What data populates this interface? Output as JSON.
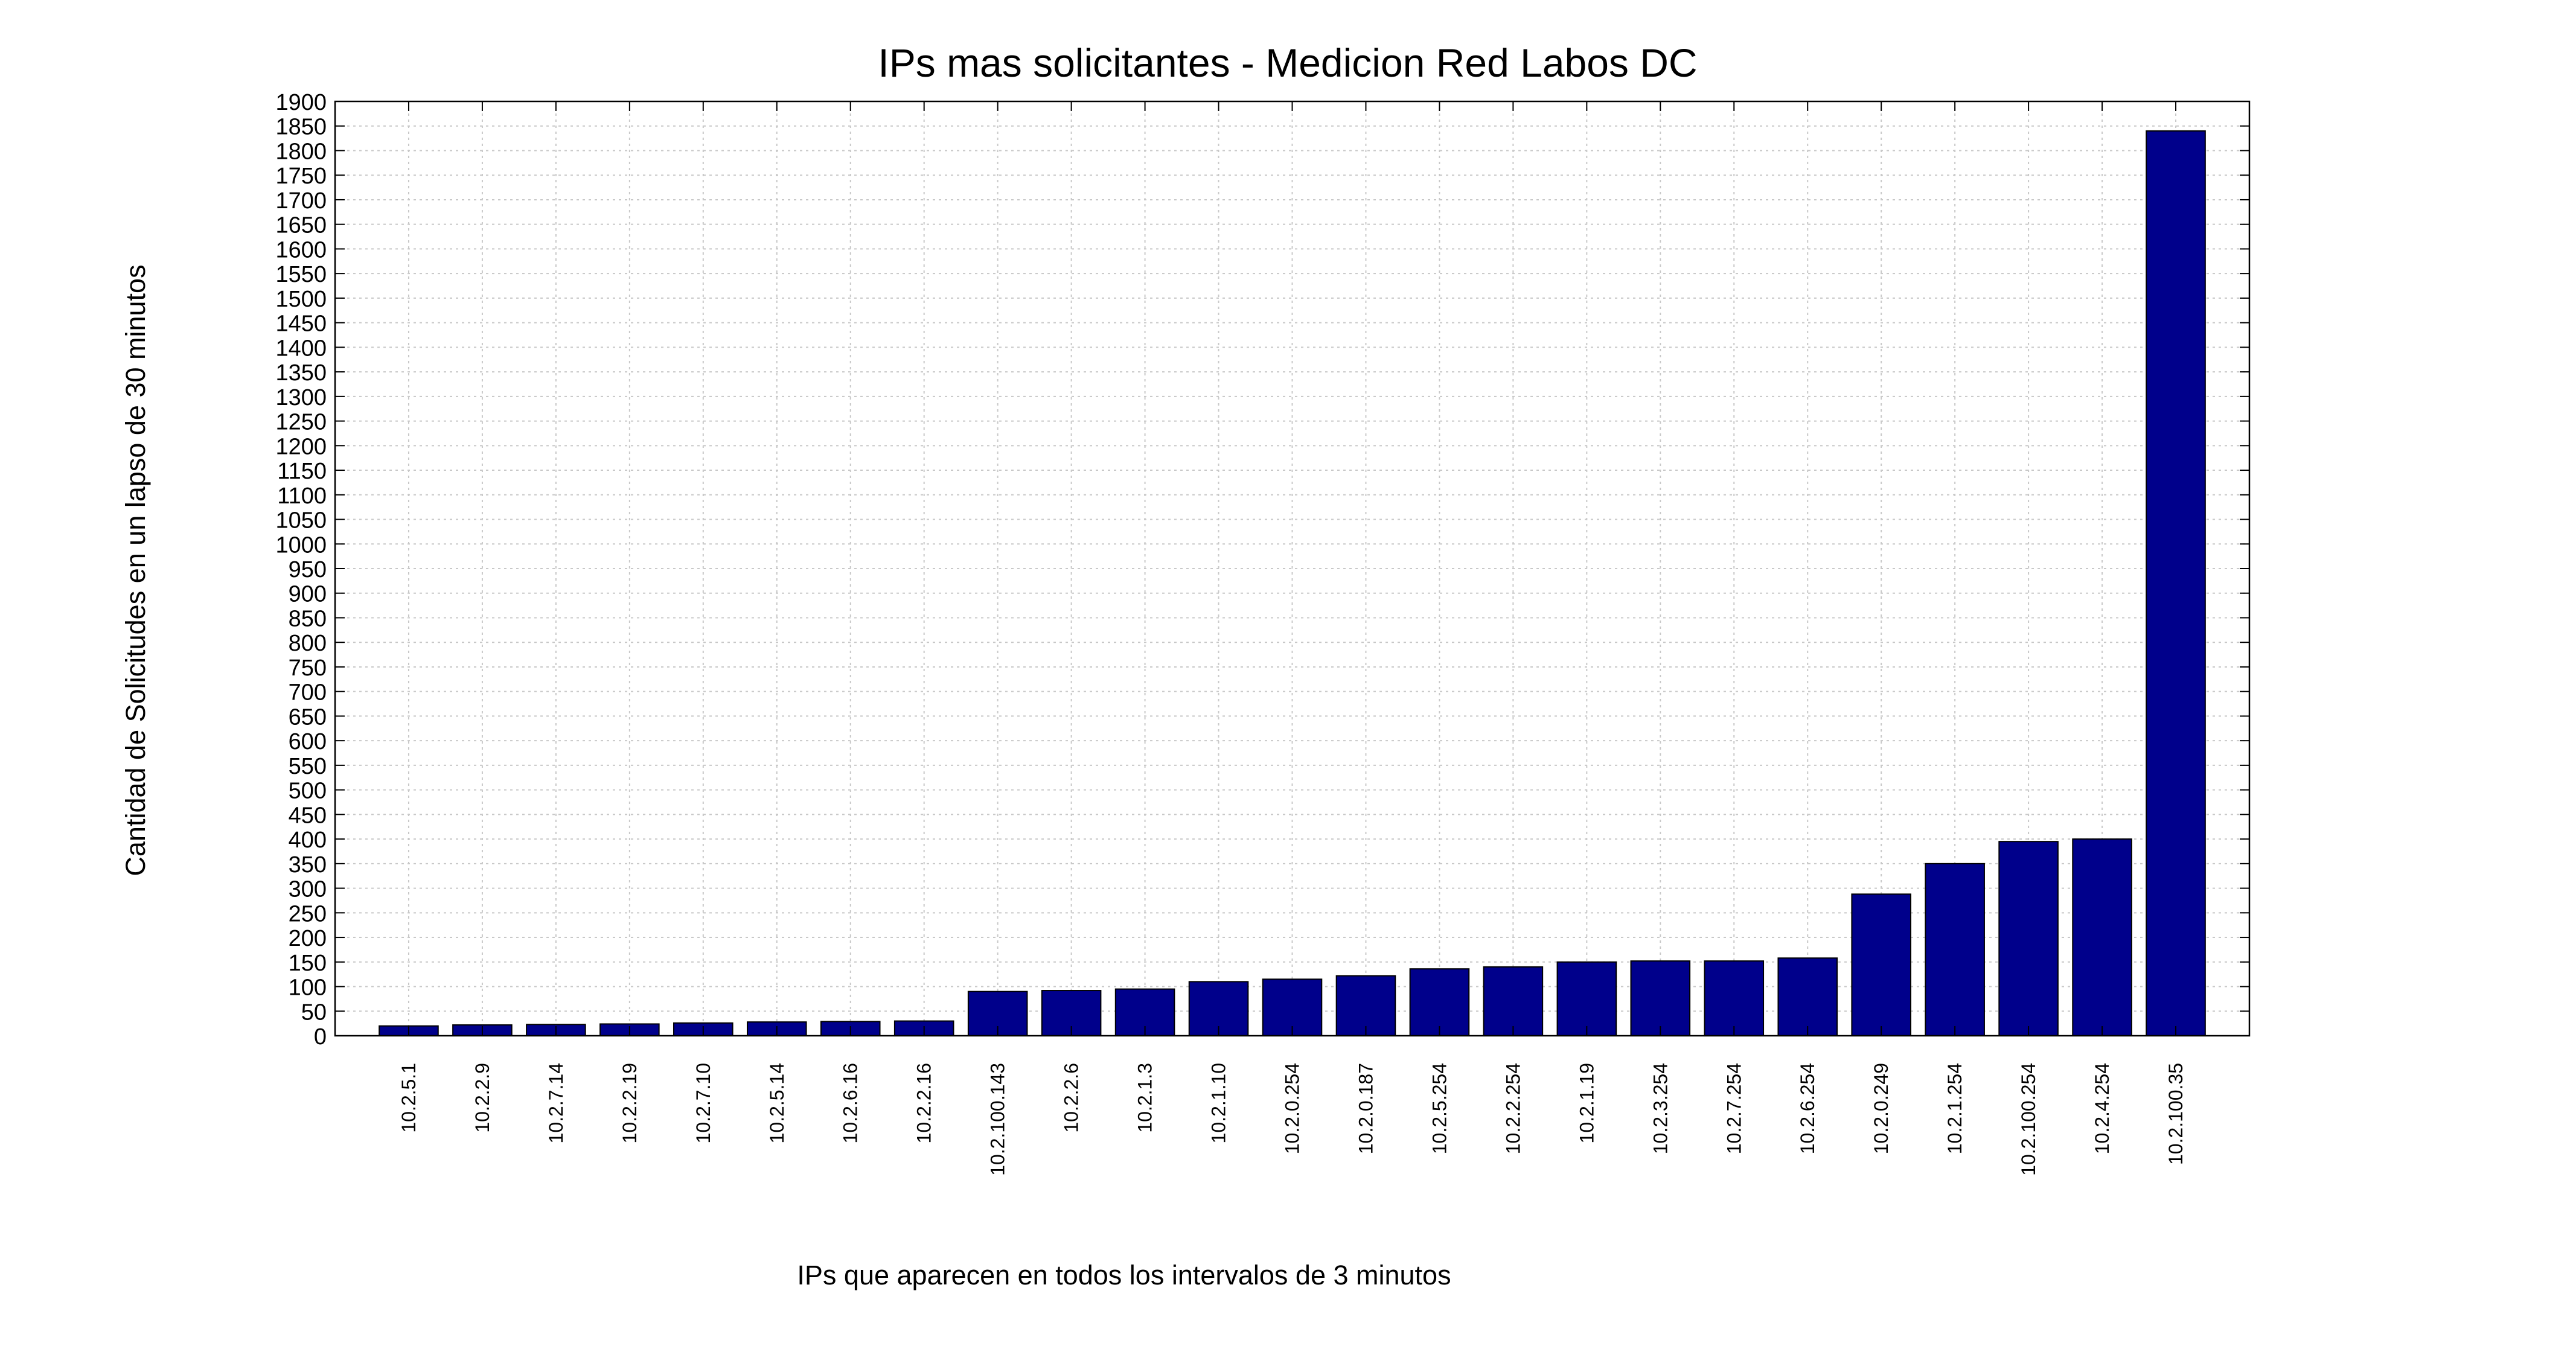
{
  "colors": {
    "bar": "#00008B",
    "grid": "#c8c8c8",
    "axis": "#000000",
    "background": "#ffffff"
  },
  "chart_data": {
    "type": "bar",
    "title": "IPs mas solicitantes - Medicion Red Labos DC",
    "xlabel": "IPs que aparecen en todos los intervalos de 3 minutos",
    "ylabel": "Cantidad de Solicitudes en un lapso de 30 minutos",
    "ylim": [
      0,
      1900
    ],
    "ytick_step": 50,
    "grid": true,
    "categories": [
      "10.2.5.1",
      "10.2.2.9",
      "10.2.7.14",
      "10.2.2.19",
      "10.2.7.10",
      "10.2.5.14",
      "10.2.6.16",
      "10.2.2.16",
      "10.2.100.143",
      "10.2.2.6",
      "10.2.1.3",
      "10.2.1.10",
      "10.2.0.254",
      "10.2.0.187",
      "10.2.5.254",
      "10.2.2.254",
      "10.2.1.19",
      "10.2.3.254",
      "10.2.7.254",
      "10.2.6.254",
      "10.2.0.249",
      "10.2.1.254",
      "10.2.100.254",
      "10.2.4.254",
      "10.2.100.35"
    ],
    "values": [
      20,
      22,
      23,
      24,
      26,
      28,
      29,
      30,
      90,
      92,
      95,
      110,
      115,
      122,
      136,
      140,
      150,
      152,
      152,
      158,
      288,
      350,
      395,
      400,
      1840
    ]
  }
}
